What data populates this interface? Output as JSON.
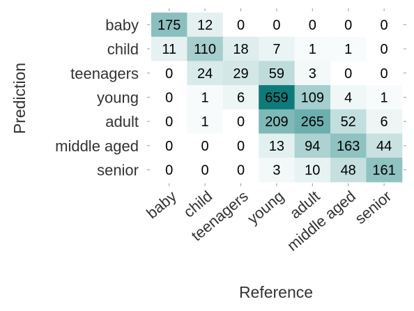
{
  "chart_data": {
    "type": "heatmap",
    "xlabel": "Reference",
    "ylabel": "Prediction",
    "x_categories": [
      "baby",
      "child",
      "teenagers",
      "young",
      "adult",
      "middle aged",
      "senior"
    ],
    "y_categories": [
      "baby",
      "child",
      "teenagers",
      "young",
      "adult",
      "middle aged",
      "senior"
    ],
    "values": [
      [
        175,
        12,
        0,
        0,
        0,
        0,
        0
      ],
      [
        11,
        110,
        18,
        7,
        1,
        1,
        0
      ],
      [
        0,
        24,
        29,
        59,
        3,
        0,
        0
      ],
      [
        0,
        1,
        6,
        659,
        109,
        4,
        1
      ],
      [
        0,
        1,
        0,
        209,
        265,
        52,
        6
      ],
      [
        0,
        0,
        0,
        13,
        94,
        163,
        44
      ],
      [
        0,
        0,
        0,
        3,
        10,
        48,
        161
      ]
    ],
    "color_low": "#ffffff",
    "color_high": "#0e7b7a",
    "x_tick_rotation": -40,
    "grid": false
  }
}
